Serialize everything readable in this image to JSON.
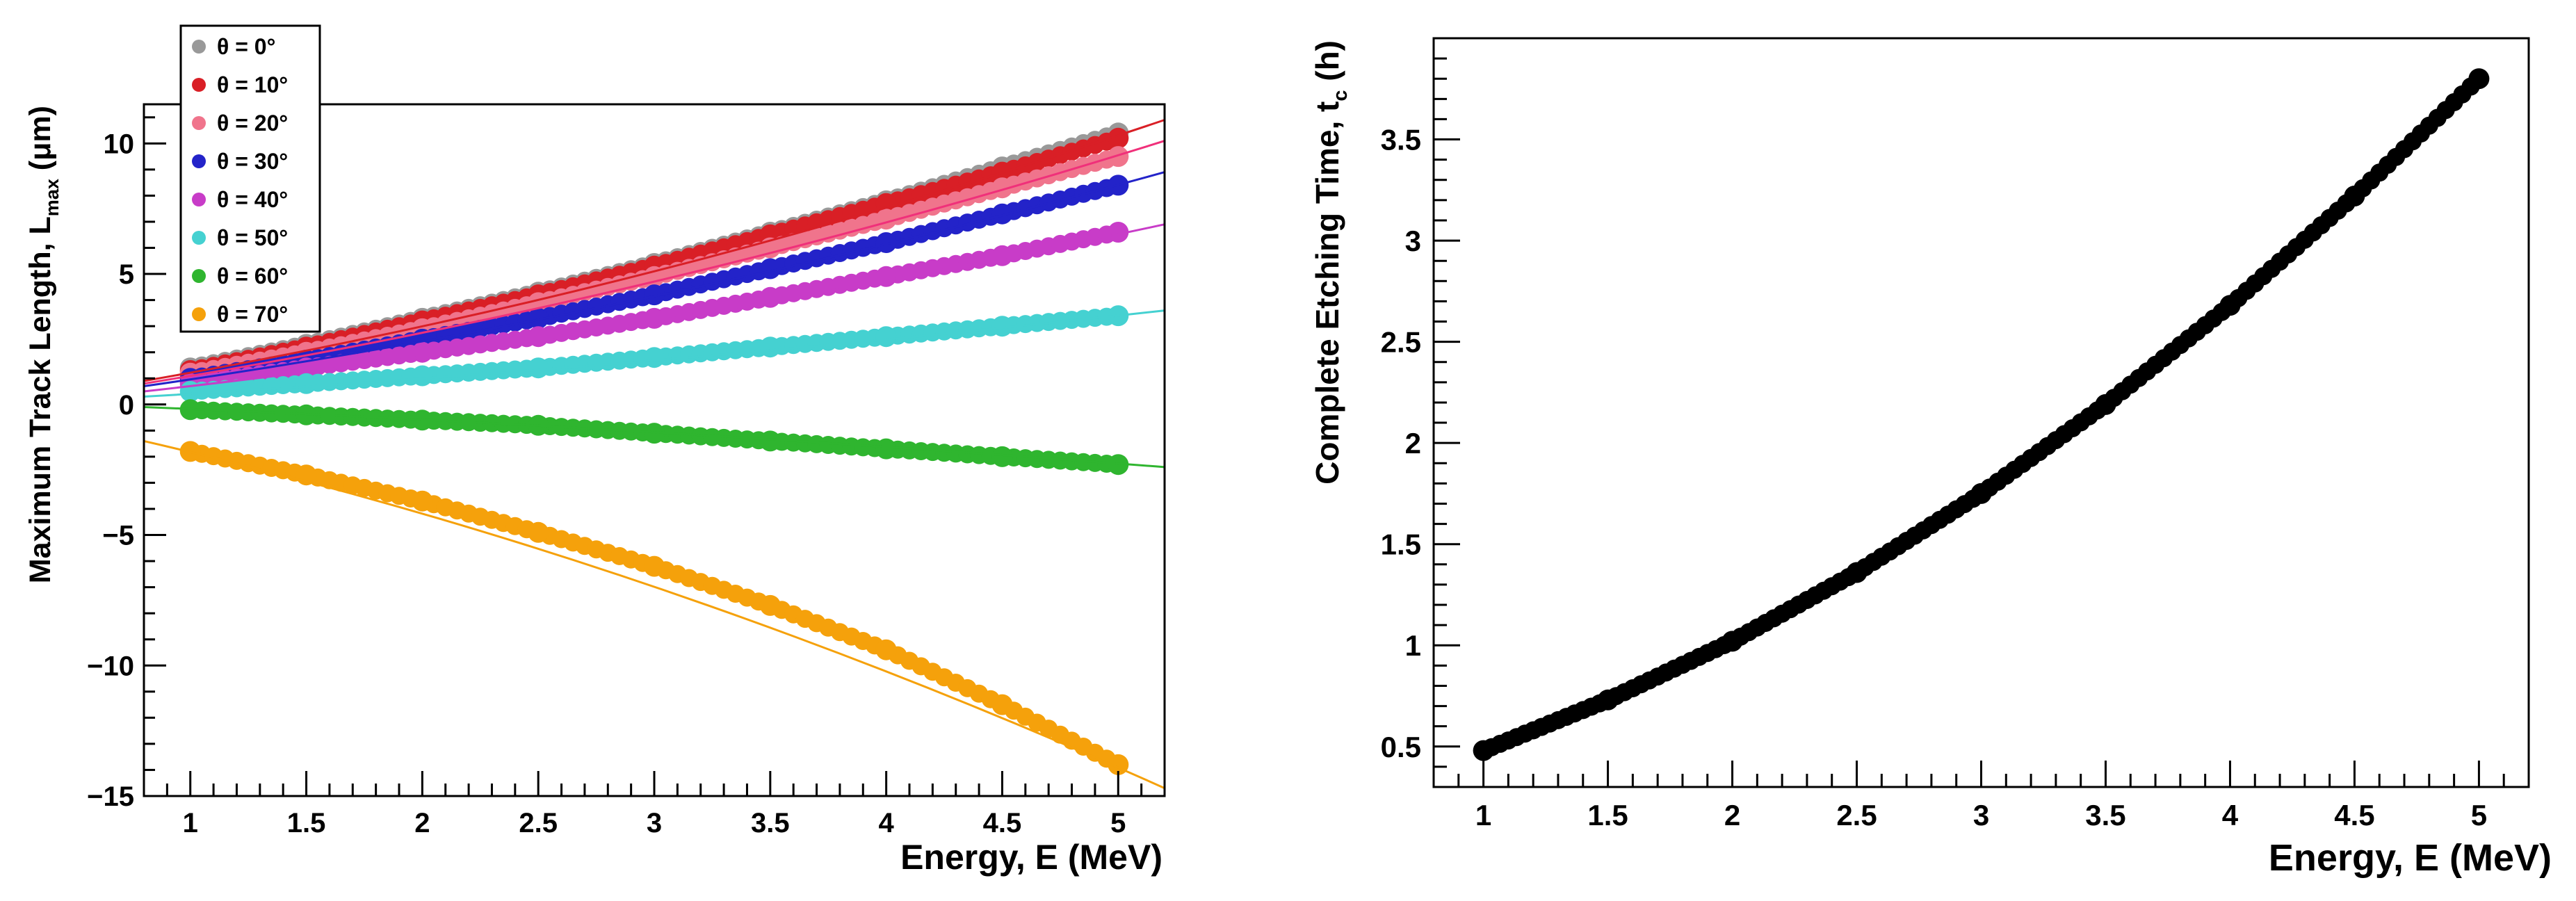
{
  "chart_data": [
    {
      "type": "line",
      "title": "",
      "xlabel": "Energy, E (MeV)",
      "ylabel_main": "Maximum Track Length, L",
      "ylabel_sub": "max",
      "ylabel_unit": " (μm)",
      "xlim": [
        0.8,
        5.2
      ],
      "ylim": [
        -15,
        11.5
      ],
      "xticks": [
        1,
        1.5,
        2,
        2.5,
        3,
        3.5,
        4,
        4.5,
        5
      ],
      "xtick_labels": [
        "1",
        "1.5",
        "2",
        "2.5",
        "3",
        "3.5",
        "4",
        "4.5",
        "5"
      ],
      "yticks": [
        -15,
        -10,
        -5,
        0,
        5,
        10
      ],
      "ytick_labels": [
        "−15",
        "−10",
        "−5",
        "0",
        "5",
        "10"
      ],
      "legend": "top-left",
      "x": [
        1.0,
        1.5,
        2.0,
        2.5,
        3.0,
        3.5,
        4.0,
        4.5,
        5.0
      ],
      "series": [
        {
          "name": "θ = 0°",
          "color": "#999999",
          "values": [
            1.4,
            2.3,
            3.3,
            4.3,
            5.4,
            6.6,
            7.8,
            9.1,
            10.4
          ]
        },
        {
          "name": "θ = 10°",
          "color": "#d91f26",
          "values": [
            1.3,
            2.2,
            3.2,
            4.2,
            5.3,
            6.5,
            7.7,
            8.9,
            10.2
          ]
        },
        {
          "name": "θ = 20°",
          "color": "#f0748c",
          "values": [
            1.2,
            2.0,
            2.9,
            3.9,
            4.9,
            6.0,
            7.1,
            8.3,
            9.5
          ]
        },
        {
          "name": "θ = 30°",
          "color": "#2323c9",
          "values": [
            1.0,
            1.7,
            2.5,
            3.3,
            4.2,
            5.2,
            6.2,
            7.3,
            8.4
          ]
        },
        {
          "name": "θ = 40°",
          "color": "#c83cc8",
          "values": [
            0.8,
            1.4,
            2.0,
            2.6,
            3.3,
            4.1,
            4.9,
            5.7,
            6.6
          ]
        },
        {
          "name": "θ = 50°",
          "color": "#45d1d1",
          "values": [
            0.5,
            0.8,
            1.1,
            1.4,
            1.8,
            2.2,
            2.6,
            3.0,
            3.4
          ]
        },
        {
          "name": "θ = 60°",
          "color": "#2fb52f",
          "values": [
            -0.2,
            -0.4,
            -0.6,
            -0.8,
            -1.1,
            -1.4,
            -1.7,
            -2.0,
            -2.3
          ]
        },
        {
          "name": "θ = 70°",
          "color": "#f5a10b",
          "values": [
            -1.8,
            -2.7,
            -3.7,
            -4.9,
            -6.2,
            -7.7,
            -9.4,
            -11.5,
            -13.8
          ]
        }
      ],
      "fits": [
        {
          "name": "θ = 10° fit",
          "color": "#d91f26",
          "x": [
            0.8,
            5.2
          ],
          "values": [
            0.9,
            10.9
          ]
        },
        {
          "name": "θ = 20° fit",
          "color": "#f0307a",
          "x": [
            0.8,
            5.2
          ],
          "values": [
            0.8,
            10.1
          ]
        },
        {
          "name": "θ = 30° fit",
          "color": "#2323c9",
          "x": [
            0.8,
            5.2
          ],
          "values": [
            0.7,
            8.9
          ]
        },
        {
          "name": "θ = 40° fit",
          "color": "#c83cc8",
          "x": [
            0.8,
            5.2
          ],
          "values": [
            0.5,
            6.9
          ]
        },
        {
          "name": "θ = 50° fit",
          "color": "#45d1d1",
          "x": [
            0.8,
            5.2
          ],
          "values": [
            0.3,
            3.6
          ]
        },
        {
          "name": "θ = 60° fit",
          "color": "#2fb52f",
          "x": [
            0.8,
            5.2
          ],
          "values": [
            -0.1,
            -2.4
          ]
        },
        {
          "name": "θ = 70° fit",
          "color": "#f5a10b",
          "x": [
            0.8,
            5.2
          ],
          "values": [
            -1.4,
            -14.7
          ]
        }
      ]
    },
    {
      "type": "scatter",
      "title": "",
      "xlabel": "Energy, E (MeV)",
      "ylabel_main": "Complete Etching Time, t",
      "ylabel_sub": "c",
      "ylabel_unit": " (h)",
      "xlim": [
        0.8,
        5.2
      ],
      "ylim": [
        0.3,
        4.0
      ],
      "xticks": [
        1,
        1.5,
        2,
        2.5,
        3,
        3.5,
        4,
        4.5,
        5
      ],
      "xtick_labels": [
        "1",
        "1.5",
        "2",
        "2.5",
        "3",
        "3.5",
        "4",
        "4.5",
        "5"
      ],
      "yticks": [
        0.5,
        1,
        1.5,
        2,
        2.5,
        3,
        3.5
      ],
      "ytick_labels": [
        "0.5",
        "1",
        "1.5",
        "2",
        "2.5",
        "3",
        "3.5"
      ],
      "series": [
        {
          "name": "t_c",
          "color": "#000000",
          "x": [
            1.0,
            1.5,
            2.0,
            2.5,
            3.0,
            3.5,
            4.0,
            4.5,
            5.0
          ],
          "values": [
            0.48,
            0.73,
            1.02,
            1.36,
            1.75,
            2.19,
            2.68,
            3.22,
            3.8
          ]
        }
      ]
    }
  ]
}
